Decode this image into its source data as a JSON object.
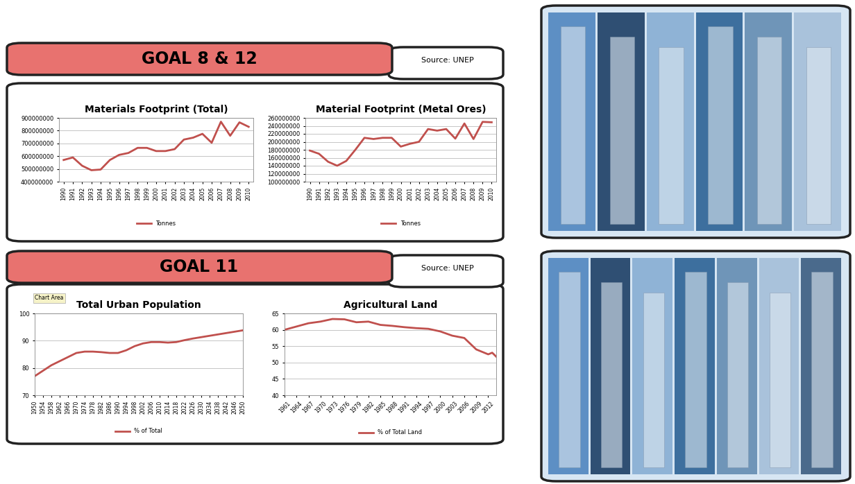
{
  "panels": [
    {
      "header": "GOAL 8 & 12",
      "source": "Source: UNEP"
    },
    {
      "header": "GOAL 11",
      "source": "Source: UNEP"
    }
  ],
  "chart_data": [
    {
      "type": "line",
      "title": "Materials Footprint (Total)",
      "categories": [
        "1990",
        "1991",
        "1992",
        "1993",
        "1994",
        "1995",
        "1996",
        "1997",
        "1998",
        "1999",
        "2000",
        "2001",
        "2002",
        "2003",
        "2004",
        "2005",
        "2006",
        "2007",
        "2008",
        "2009",
        "2010"
      ],
      "series": [
        {
          "name": "Tonnes",
          "color": "#c0504d",
          "values": [
            570000000,
            590000000,
            525000000,
            490000000,
            495000000,
            570000000,
            610000000,
            625000000,
            665000000,
            665000000,
            640000000,
            640000000,
            655000000,
            730000000,
            745000000,
            775000000,
            705000000,
            870000000,
            760000000,
            865000000,
            830000000
          ]
        }
      ],
      "ylim": [
        400000000,
        900000000
      ],
      "yticks": [
        400000000,
        500000000,
        600000000,
        700000000,
        800000000,
        900000000
      ],
      "grid": true,
      "legend": "bottom"
    },
    {
      "type": "line",
      "title": "Material Footprint (Metal Ores)",
      "categories": [
        "1990",
        "1991",
        "1992",
        "1993",
        "1994",
        "1995",
        "1996",
        "1997",
        "1998",
        "1999",
        "2000",
        "2001",
        "2002",
        "2003",
        "2004",
        "2005",
        "2006",
        "2007",
        "2008",
        "2009",
        "2010"
      ],
      "series": [
        {
          "name": "Tonnes",
          "color": "#c0504d",
          "values": [
            178000000,
            170000000,
            150000000,
            140000000,
            152000000,
            180000000,
            210000000,
            207000000,
            210000000,
            210000000,
            188000000,
            195000000,
            200000000,
            232000000,
            228000000,
            232000000,
            208000000,
            246000000,
            207000000,
            250000000,
            249000000
          ]
        }
      ],
      "ylim": [
        100000000,
        260000000
      ],
      "yticks": [
        100000000,
        120000000,
        140000000,
        160000000,
        180000000,
        200000000,
        220000000,
        240000000,
        260000000
      ],
      "grid": true,
      "legend": "bottom"
    },
    {
      "type": "line",
      "title": "Total Urban Population",
      "annotation": "Chart Area",
      "x": [
        1950,
        1954,
        1958,
        1962,
        1966,
        1970,
        1974,
        1978,
        1982,
        1986,
        1990,
        1994,
        1998,
        2002,
        2006,
        2010,
        2014,
        2018,
        2022,
        2026,
        2030,
        2034,
        2038,
        2042,
        2046,
        2050
      ],
      "series": [
        {
          "name": "% of Total",
          "color": "#c0504d",
          "values": [
            77,
            79,
            81,
            82.5,
            84,
            85.5,
            86,
            86,
            85.8,
            85.5,
            85.5,
            86.5,
            88,
            89,
            89.5,
            89.5,
            89.3,
            89.5,
            90.2,
            90.8,
            91.3,
            91.8,
            92.3,
            92.8,
            93.3,
            93.8
          ]
        }
      ],
      "xlim": [
        1950,
        2050
      ],
      "xticks": [
        1950,
        1954,
        1958,
        1962,
        1966,
        1970,
        1974,
        1978,
        1982,
        1986,
        1990,
        1994,
        1998,
        2002,
        2006,
        2010,
        2014,
        2018,
        2022,
        2026,
        2030,
        2034,
        2038,
        2042,
        2046,
        2050
      ],
      "ylim": [
        70,
        100
      ],
      "yticks": [
        70,
        80,
        90,
        100
      ],
      "grid": true,
      "legend": "bottom"
    },
    {
      "type": "line",
      "title": "Agricultural Land",
      "x": [
        1961,
        1964,
        1967,
        1970,
        1973,
        1976,
        1979,
        1982,
        1985,
        1988,
        1991,
        1994,
        1997,
        2000,
        2003,
        2006,
        2009,
        2012,
        2013,
        2014
      ],
      "series": [
        {
          "name": "% of Total Land",
          "color": "#c0504d",
          "values": [
            60,
            61,
            62,
            62.5,
            63.3,
            63.2,
            62.3,
            62.5,
            61.5,
            61.2,
            60.8,
            60.5,
            60.3,
            59.5,
            58.2,
            57.5,
            54,
            52.5,
            53,
            51.8
          ]
        }
      ],
      "xlim": [
        1961,
        2014
      ],
      "xticks": [
        1961,
        1964,
        1967,
        1970,
        1973,
        1976,
        1979,
        1982,
        1985,
        1988,
        1991,
        1994,
        1997,
        2000,
        2003,
        2006,
        2009,
        2012
      ],
      "ylim": [
        40,
        65
      ],
      "yticks": [
        40,
        45,
        50,
        55,
        60,
        65
      ],
      "grid": true,
      "legend": "bottom"
    }
  ]
}
